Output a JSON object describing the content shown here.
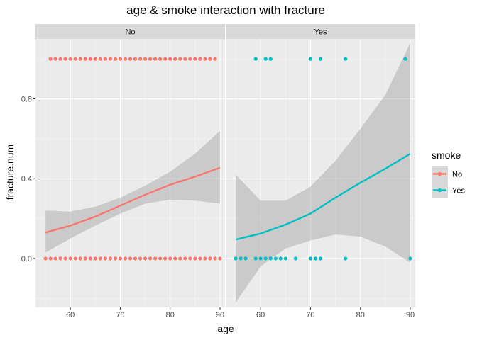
{
  "chart_data": {
    "type": "scatter",
    "title": "age & smoke  interaction with fracture",
    "xlabel": "age",
    "ylabel": "fracture.num",
    "xlim": [
      53,
      91
    ],
    "ylim": [
      -0.245,
      1.1
    ],
    "x_ticks": [
      60,
      70,
      80,
      90
    ],
    "y_ticks": [
      0.0,
      0.4,
      0.8
    ],
    "y_tick_labels": [
      "0.0",
      "0.4",
      "0.8"
    ],
    "grid": true,
    "legend": {
      "title": "smoke",
      "position": "right",
      "entries": [
        {
          "label": "No",
          "color": "#F8766D"
        },
        {
          "label": "Yes",
          "color": "#00BFC4"
        }
      ]
    },
    "panels": [
      {
        "strip": "No",
        "color": "#F8766D",
        "points_y1": [
          56,
          57,
          58,
          59,
          60,
          61,
          62,
          63,
          64,
          65,
          66,
          67,
          68,
          69,
          70,
          71,
          72,
          73,
          74,
          75,
          76,
          77,
          78,
          79,
          80,
          81,
          82,
          83,
          84,
          85,
          86,
          87,
          88,
          89
        ],
        "points_y0": [
          55,
          56,
          57,
          58,
          59,
          60,
          61,
          62,
          63,
          64,
          65,
          66,
          67,
          68,
          69,
          70,
          71,
          72,
          73,
          74,
          75,
          76,
          77,
          78,
          79,
          80,
          81,
          82,
          83,
          84,
          85,
          86,
          87,
          88,
          89,
          90
        ],
        "smooth_x": [
          55,
          60,
          65,
          70,
          75,
          80,
          85,
          90
        ],
        "smooth_y": [
          0.13,
          0.165,
          0.21,
          0.265,
          0.32,
          0.37,
          0.41,
          0.455
        ],
        "ci_lower": [
          0.03,
          0.1,
          0.165,
          0.225,
          0.275,
          0.295,
          0.29,
          0.275
        ],
        "ci_upper": [
          0.24,
          0.235,
          0.26,
          0.305,
          0.365,
          0.435,
          0.525,
          0.64
        ]
      },
      {
        "strip": "Yes",
        "color": "#00BFC4",
        "points_y1": [
          59,
          61,
          62,
          70,
          72,
          77,
          89
        ],
        "points_y0": [
          55,
          56,
          57,
          59,
          60,
          61,
          62,
          63,
          64,
          65,
          67,
          70,
          71,
          72,
          77,
          90
        ],
        "smooth_x": [
          55,
          60,
          65,
          70,
          75,
          80,
          85,
          90
        ],
        "smooth_y": [
          0.095,
          0.125,
          0.17,
          0.225,
          0.305,
          0.38,
          0.45,
          0.525
        ],
        "ci_lower": [
          -0.22,
          -0.04,
          0.05,
          0.09,
          0.12,
          0.11,
          0.06,
          -0.02
        ],
        "ci_upper": [
          0.42,
          0.29,
          0.29,
          0.36,
          0.49,
          0.65,
          0.82,
          1.08
        ]
      }
    ]
  }
}
